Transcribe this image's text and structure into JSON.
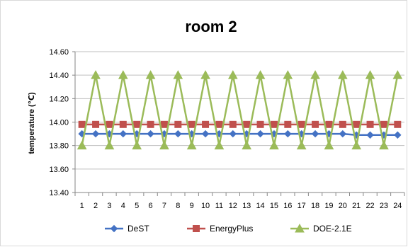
{
  "chart_data": {
    "type": "line",
    "title": "room 2",
    "xlabel": "",
    "ylabel": "temperature (℃)",
    "x": [
      1,
      2,
      3,
      4,
      5,
      6,
      7,
      8,
      9,
      10,
      11,
      12,
      13,
      14,
      15,
      16,
      17,
      18,
      19,
      20,
      21,
      22,
      23,
      24
    ],
    "x_tick_labels": [
      "1",
      "2",
      "3",
      "4",
      "5",
      "6",
      "7",
      "8",
      "9",
      "10",
      "11",
      "12",
      "13",
      "14",
      "15",
      "16",
      "17",
      "18",
      "19",
      "20",
      "21",
      "22",
      "23",
      "24"
    ],
    "ylim": [
      13.4,
      14.6
    ],
    "y_ticks": [
      13.4,
      13.6,
      13.8,
      14.0,
      14.2,
      14.4,
      14.6
    ],
    "y_tick_labels": [
      "13.40",
      "13.60",
      "13.80",
      "14.00",
      "14.20",
      "14.40",
      "14.60"
    ],
    "grid": "horizontal",
    "legend_position": "bottom",
    "series": [
      {
        "name": "DeST",
        "color": "#4472C4",
        "marker": "diamond",
        "values": [
          13.9,
          13.9,
          13.9,
          13.9,
          13.9,
          13.9,
          13.9,
          13.9,
          13.9,
          13.9,
          13.9,
          13.9,
          13.9,
          13.9,
          13.9,
          13.9,
          13.9,
          13.9,
          13.9,
          13.9,
          13.89,
          13.89,
          13.89,
          13.89
        ]
      },
      {
        "name": "EnergyPlus",
        "color": "#C0504D",
        "marker": "square",
        "values": [
          13.98,
          13.98,
          13.98,
          13.98,
          13.98,
          13.98,
          13.98,
          13.98,
          13.98,
          13.98,
          13.98,
          13.98,
          13.98,
          13.98,
          13.98,
          13.98,
          13.98,
          13.98,
          13.98,
          13.98,
          13.98,
          13.98,
          13.98,
          13.98
        ]
      },
      {
        "name": "DOE-2.1E",
        "color": "#9BBB59",
        "marker": "triangle",
        "values": [
          13.8,
          14.4,
          13.8,
          14.4,
          13.8,
          14.4,
          13.8,
          14.4,
          13.8,
          14.4,
          13.8,
          14.4,
          13.8,
          14.4,
          13.8,
          14.4,
          13.8,
          14.4,
          13.8,
          14.4,
          13.8,
          14.4,
          13.8,
          14.4
        ]
      }
    ]
  }
}
